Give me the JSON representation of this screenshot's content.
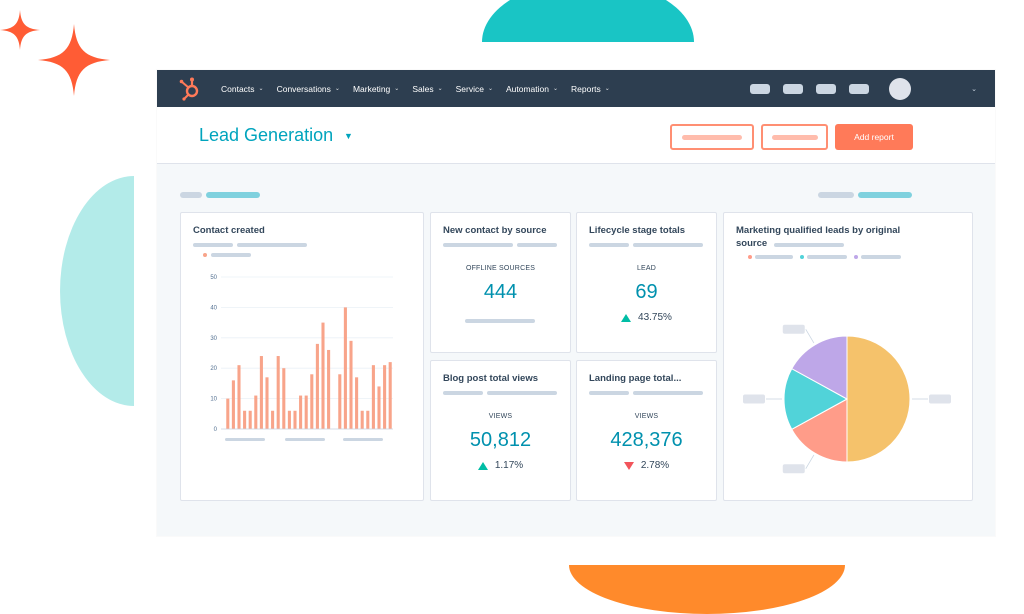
{
  "nav": {
    "items": [
      {
        "label": "Contacts"
      },
      {
        "label": "Conversations"
      },
      {
        "label": "Marketing"
      },
      {
        "label": "Sales"
      },
      {
        "label": "Service"
      },
      {
        "label": "Automation"
      },
      {
        "label": "Reports"
      }
    ]
  },
  "header": {
    "title": "Lead Generation",
    "add_report_label": "Add report"
  },
  "cards": {
    "contact_created": {
      "title": "Contact created"
    },
    "new_contact_by_source": {
      "title": "New contact by source",
      "metric_label": "OFFLINE SOURCES",
      "value": "444"
    },
    "lifecycle_stage_totals": {
      "title": "Lifecycle stage totals",
      "metric_label": "LEAD",
      "value": "69",
      "change": "43.75%",
      "direction": "up"
    },
    "blog_post_total_views": {
      "title": "Blog post total views",
      "metric_label": "VIEWS",
      "value": "50,812",
      "change": "1.17%",
      "direction": "up"
    },
    "landing_page_total": {
      "title": "Landing page total...",
      "metric_label": "VIEWS",
      "value": "428,376",
      "change": "2.78%",
      "direction": "down"
    },
    "mql_by_source": {
      "title_line1": "Marketing qualified leads by original",
      "title_line2": "source"
    }
  },
  "colors": {
    "accent": "#00a4bd",
    "nav_bg": "#2d3e50",
    "cta": "#ff7a59",
    "bar": "#f8a48a",
    "up": "#00bda5",
    "down": "#f2545b"
  },
  "chart_data": [
    {
      "type": "bar",
      "y_ticks": [
        "0",
        "10",
        "20",
        "30",
        "40",
        "50"
      ],
      "ylim": [
        0,
        50
      ],
      "values": [
        10,
        16,
        21,
        6,
        6,
        11,
        24,
        17,
        6,
        24,
        20,
        6,
        6,
        11,
        11,
        18,
        28,
        35,
        26,
        0,
        18,
        40,
        29,
        17,
        6,
        6,
        21,
        14,
        21,
        22
      ],
      "grid": true
    },
    {
      "type": "pie",
      "slices": [
        {
          "value": 50,
          "color": "#f5c26b"
        },
        {
          "value": 17,
          "color": "#ff9c89"
        },
        {
          "value": 16,
          "color": "#51d3d9"
        },
        {
          "value": 17,
          "color": "#bea7e8"
        }
      ]
    }
  ]
}
